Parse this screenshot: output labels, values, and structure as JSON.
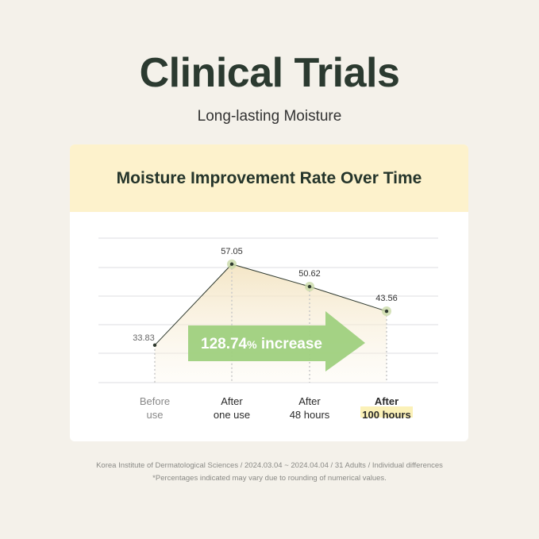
{
  "header": {
    "title": "Clinical Trials",
    "subtitle": "Long-lasting Moisture"
  },
  "chart_data": {
    "type": "line",
    "title": "Moisture Improvement Rate Over Time",
    "categories": [
      [
        "Before",
        "use"
      ],
      [
        "After",
        "one use"
      ],
      [
        "After",
        "48 hours"
      ],
      [
        "After",
        "100 hours"
      ]
    ],
    "values": [
      33.83,
      57.05,
      50.62,
      43.56
    ],
    "value_labels": [
      "33.83",
      "57.05",
      "50.62",
      "43.56"
    ],
    "highlight_category": 3,
    "annotation": {
      "value": "128.74",
      "unit": "%",
      "text": " increase"
    },
    "grid": true,
    "colors": {
      "line": "#2f3a2f",
      "fill": "#f6ead0",
      "arrow": "#9fd07e",
      "marker_halo": "#c9d9a8",
      "highlight": "#fbf1b8"
    }
  },
  "footer": {
    "source": "Korea Institute of Dermatological Sciences / 2024.03.04 ~ 2024.04.04 / 31 Adults / Individual differences",
    "note": "*Percentages indicated may vary due to rounding of numerical values."
  }
}
